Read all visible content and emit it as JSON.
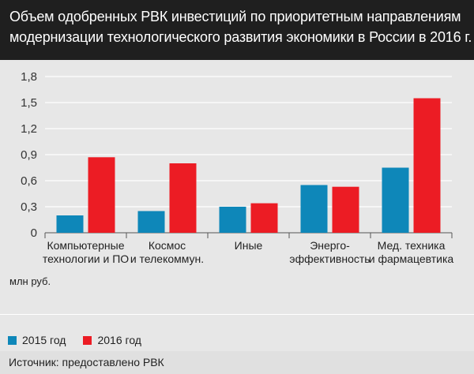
{
  "header": {
    "title_line1": "Объем одобренных РВК инвестиций по приоритетным направлениям",
    "title_line2": "модернизации технологического развития экономики в России в 2016 г."
  },
  "unit_label": "млн руб.",
  "legend": [
    {
      "label": "2015 год",
      "color": "#0e87b9"
    },
    {
      "label": "2016 год",
      "color": "#ec1c24"
    }
  ],
  "source": "Источник: предоставлено РВК",
  "chart_data": {
    "type": "bar",
    "title": "Объем одобренных РВК инвестиций по приоритетным направлениям модернизации технологического развития экономики в России в 2016 г.",
    "ylabel": "млн руб.",
    "ylim": [
      0,
      1.8
    ],
    "yticks": [
      "0",
      "0,3",
      "0,6",
      "0,9",
      "1,2",
      "1,5",
      "1,8"
    ],
    "categories": [
      [
        "Компьютерные",
        "технологии и ПО"
      ],
      [
        "Космос",
        "и телекоммун."
      ],
      [
        "Иные"
      ],
      [
        "Энерго-",
        "эффективность"
      ],
      [
        "Мед. техника",
        "и фармацевтика"
      ]
    ],
    "series": [
      {
        "name": "2015 год",
        "color": "#0e87b9",
        "values": [
          0.2,
          0.25,
          0.3,
          0.55,
          0.75
        ]
      },
      {
        "name": "2016 год",
        "color": "#ec1c24",
        "values": [
          0.87,
          0.8,
          0.34,
          0.53,
          1.55
        ]
      }
    ],
    "grid": true
  }
}
